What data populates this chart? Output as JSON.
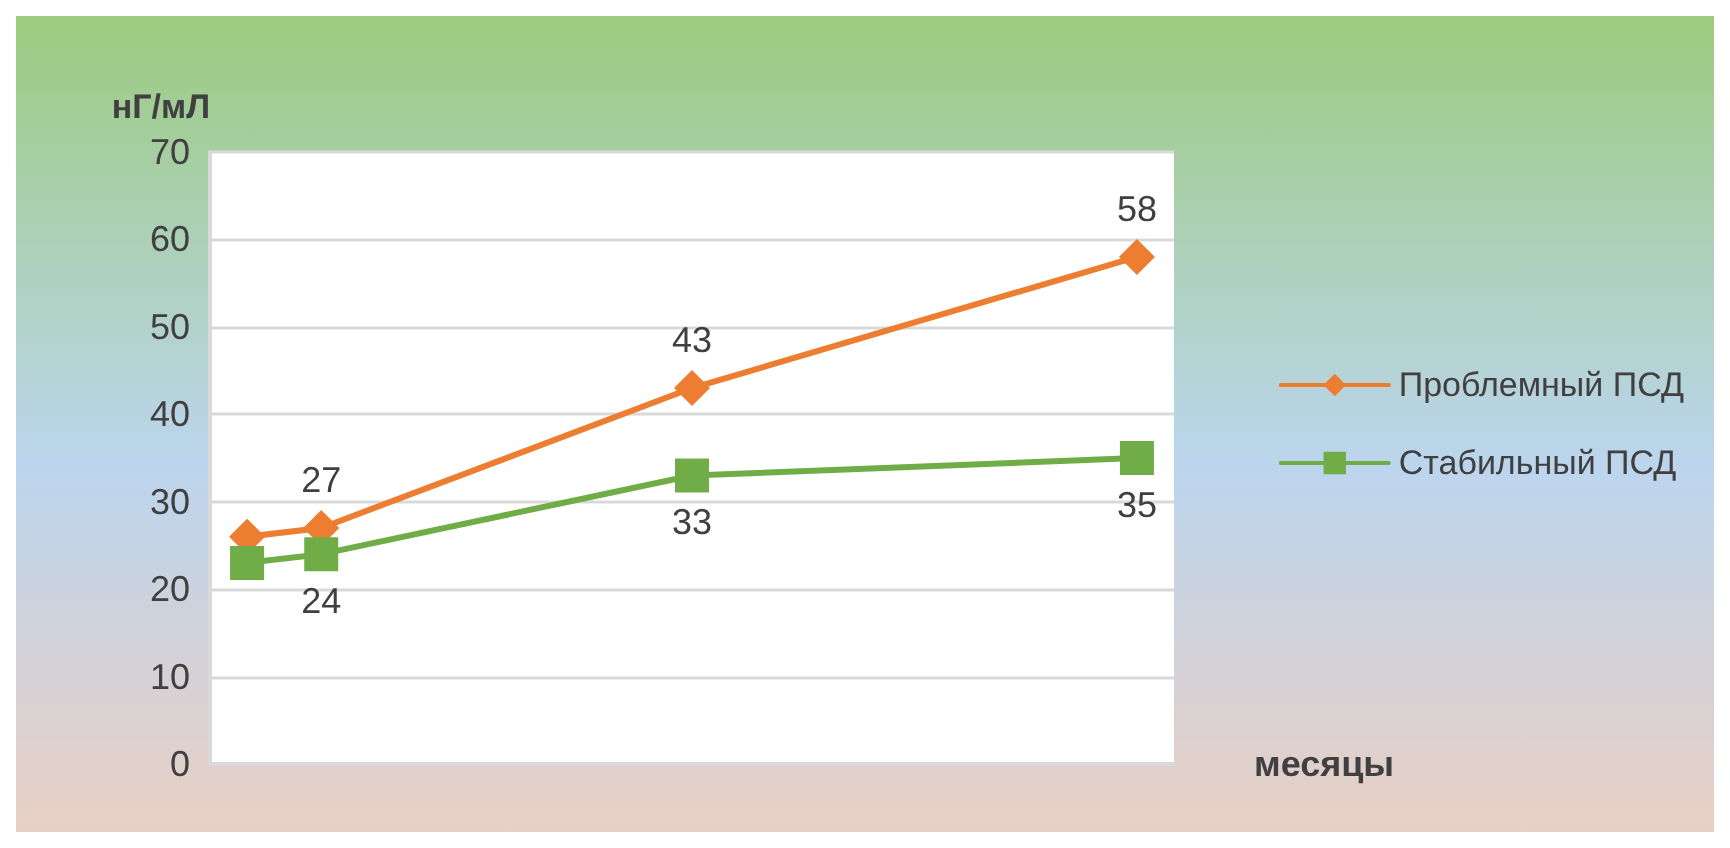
{
  "chart_data": {
    "type": "line",
    "ylabel": "нГ/мЛ",
    "xlabel": "месяцы",
    "categories": [
      null,
      null,
      null,
      null,
      null,
      null,
      null,
      null,
      null,
      null,
      null,
      null,
      null
    ],
    "series": [
      {
        "name": "Проблемный ПСД",
        "color": "#ed7d31",
        "marker": "diamond",
        "values": [
          26,
          27,
          null,
          null,
          null,
          null,
          43,
          null,
          null,
          null,
          null,
          null,
          58
        ],
        "value_labels": [
          null,
          "27",
          null,
          null,
          null,
          null,
          "43",
          null,
          null,
          null,
          null,
          null,
          "58"
        ]
      },
      {
        "name": "Стабильный ПСД",
        "color": "#70ad47",
        "marker": "square",
        "values": [
          23,
          24,
          null,
          null,
          null,
          null,
          33,
          null,
          null,
          null,
          null,
          null,
          35
        ],
        "value_labels": [
          null,
          "24",
          null,
          null,
          null,
          null,
          "33",
          null,
          null,
          null,
          null,
          null,
          "35"
        ]
      }
    ],
    "ylim": [
      0,
      70
    ],
    "yticks": [
      0,
      10,
      20,
      30,
      40,
      50,
      60,
      70
    ],
    "grid": "y",
    "legend": "right",
    "tick_labels": "y"
  }
}
